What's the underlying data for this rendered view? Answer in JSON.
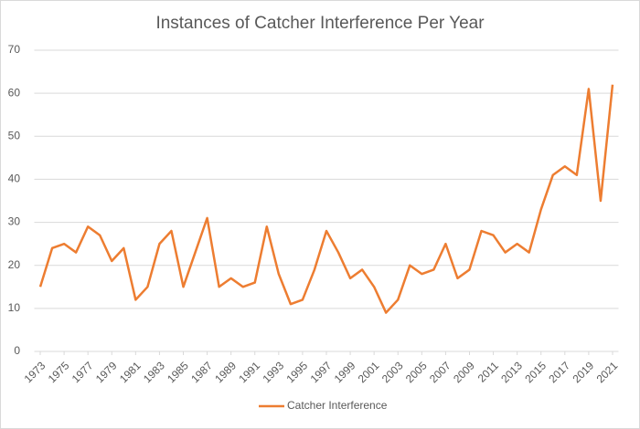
{
  "chart_data": {
    "type": "line",
    "title": "Instances of Catcher Interference Per Year",
    "x": [
      1973,
      1974,
      1975,
      1976,
      1977,
      1978,
      1979,
      1980,
      1981,
      1982,
      1983,
      1984,
      1985,
      1986,
      1987,
      1988,
      1989,
      1990,
      1991,
      1992,
      1993,
      1994,
      1995,
      1996,
      1997,
      1998,
      1999,
      2000,
      2001,
      2002,
      2003,
      2004,
      2005,
      2006,
      2007,
      2008,
      2009,
      2010,
      2011,
      2012,
      2013,
      2014,
      2015,
      2016,
      2017,
      2018,
      2019,
      2020,
      2021
    ],
    "series": [
      {
        "name": "Catcher Interference",
        "color": "#ed7d31",
        "values": [
          15,
          24,
          25,
          23,
          29,
          27,
          21,
          24,
          12,
          15,
          25,
          28,
          15,
          23,
          31,
          15,
          17,
          15,
          16,
          29,
          18,
          11,
          12,
          19,
          28,
          23,
          17,
          19,
          15,
          9,
          12,
          20,
          18,
          19,
          25,
          17,
          19,
          28,
          27,
          23,
          25,
          23,
          33,
          41,
          43,
          41,
          61,
          35,
          62
        ]
      }
    ],
    "xlim": [
      1972.5,
      2021.5
    ],
    "xticks": [
      1973,
      1975,
      1977,
      1979,
      1981,
      1983,
      1985,
      1987,
      1989,
      1991,
      1993,
      1995,
      1997,
      1999,
      2001,
      2003,
      2005,
      2007,
      2009,
      2011,
      2013,
      2015,
      2017,
      2019,
      2021
    ],
    "ylim": [
      0,
      70
    ],
    "yticks": [
      0,
      10,
      20,
      30,
      40,
      50,
      60,
      70
    ],
    "grid": true,
    "legend": "bottom"
  }
}
